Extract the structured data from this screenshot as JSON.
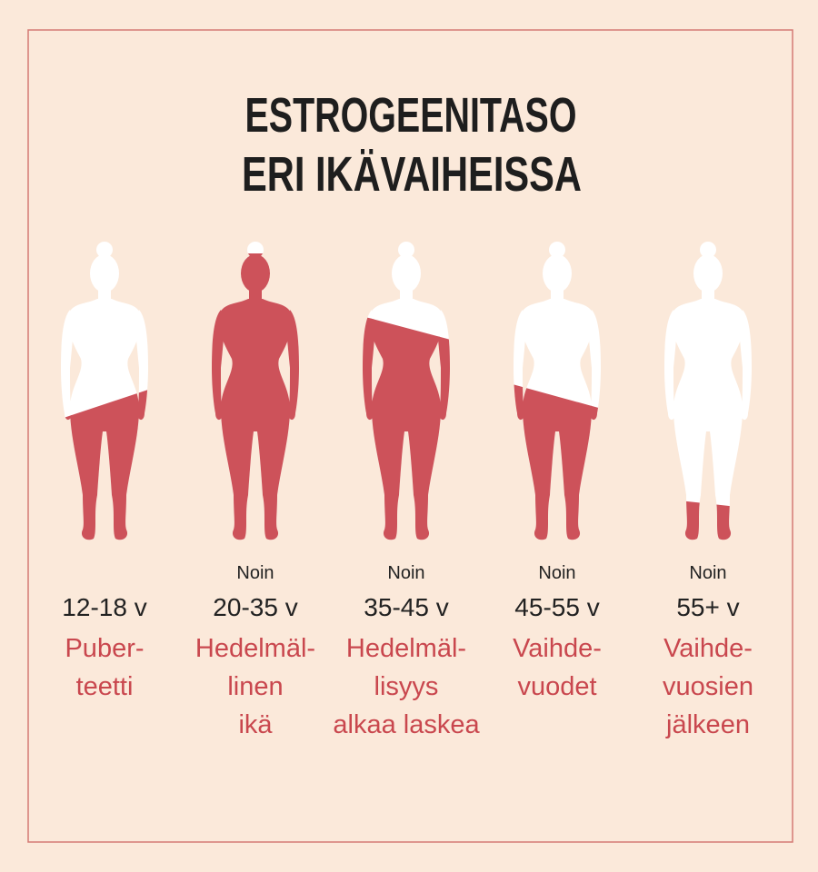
{
  "title": [
    "ESTROGEENITASO",
    "ERI IKÄVAIHEISSA"
  ],
  "stages": [
    {
      "age": "12-18 v",
      "label": [
        "Puber-",
        "teetti"
      ]
    },
    {
      "note": "Noin",
      "age": "20-35 v",
      "label": [
        "Hedelmäl-",
        "linen",
        "ikä"
      ]
    },
    {
      "note": "Noin",
      "age": "35-45 v",
      "label": [
        "Hedelmäl-",
        "lisyys",
        "alkaa laskea"
      ]
    },
    {
      "note": "Noin",
      "age": "45-55 v",
      "label": [
        "Vaihde-",
        "vuodet"
      ]
    },
    {
      "note": "Noin",
      "age": "55+ v",
      "label": [
        "Vaihde-",
        "vuosien",
        "jälkeen"
      ]
    }
  ]
}
